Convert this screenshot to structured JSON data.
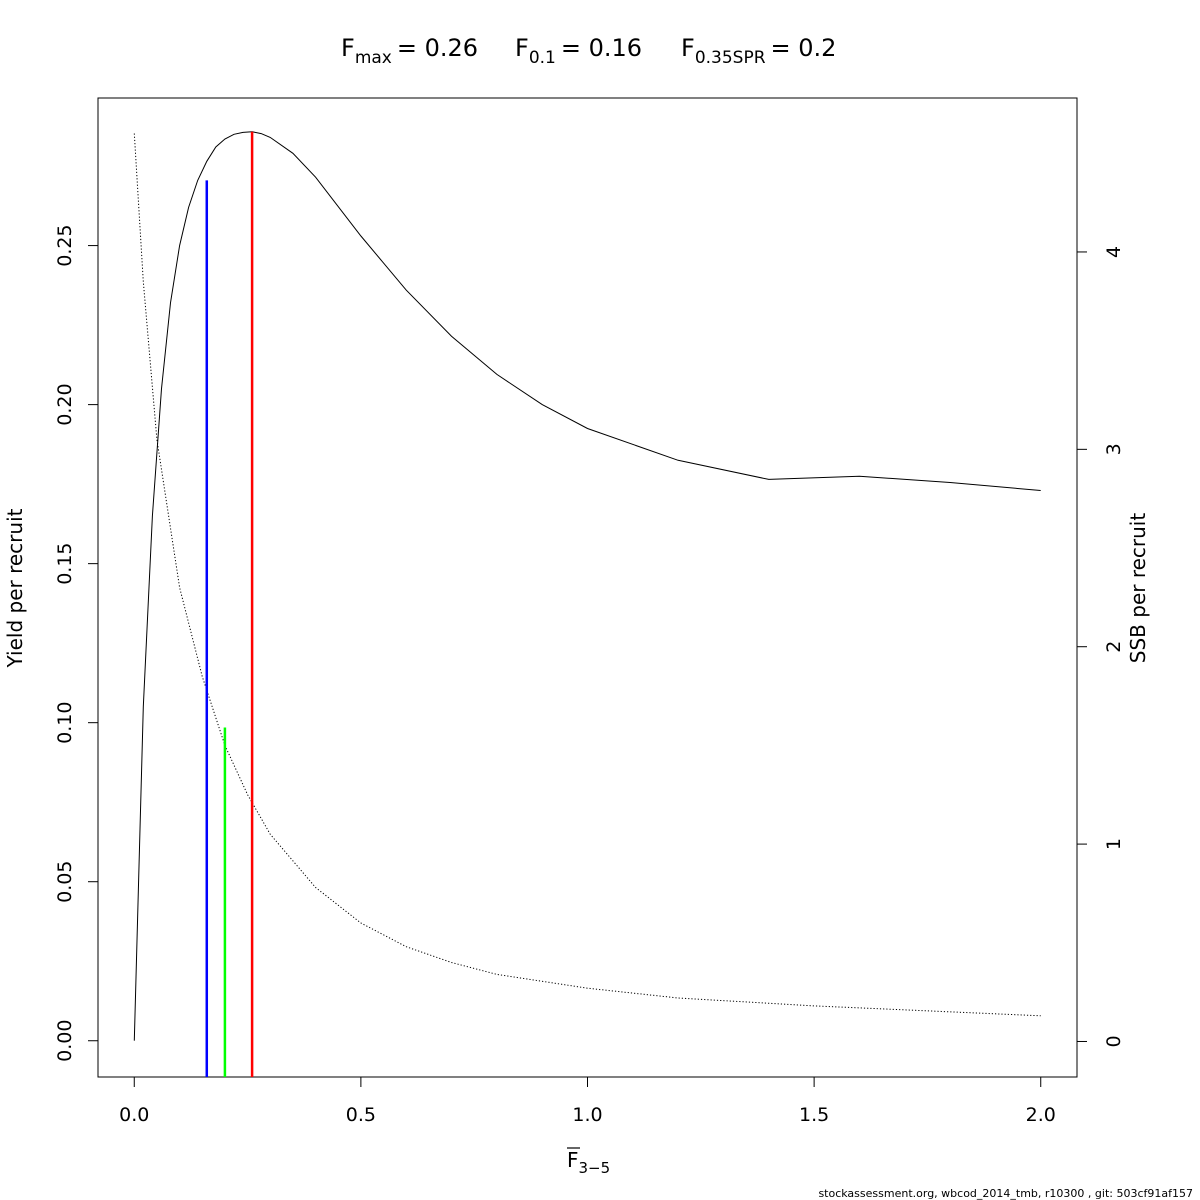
{
  "title": {
    "fmax": {
      "label": "F",
      "sub": "max",
      "value": "= 0.26"
    },
    "f01": {
      "label": "F",
      "sub": "0.1",
      "value": "= 0.16"
    },
    "f035": {
      "label": "F",
      "sub": "0.35SPR",
      "value": "= 0.2"
    }
  },
  "footer": "stockassessment.org, wbcod_2014_tmb, r10300 , git: 503cf91af157",
  "chart_data": {
    "type": "line",
    "xlabel": {
      "base": "F",
      "sub": "3−5"
    },
    "ylabel": "Yield per recruit",
    "y2label": "SSB per recruit",
    "xlim": [
      -0.08,
      2.08
    ],
    "ylim": [
      -0.0114,
      0.2964
    ],
    "y2lim": [
      -0.18,
      4.78
    ],
    "xticks": [
      "0.0",
      "0.5",
      "1.0",
      "1.5",
      "2.0"
    ],
    "yticks": [
      "0.00",
      "0.05",
      "0.10",
      "0.15",
      "0.20",
      "0.25"
    ],
    "y2ticks": [
      "0",
      "1",
      "2",
      "3",
      "4"
    ],
    "series": [
      {
        "axis": "left",
        "style": "solid",
        "color": "#000000",
        "x": [
          0,
          0.02,
          0.04,
          0.06,
          0.08,
          0.1,
          0.12,
          0.14,
          0.16,
          0.18,
          0.2,
          0.22,
          0.24,
          0.26,
          0.28,
          0.3,
          0.35,
          0.4,
          0.5,
          0.6,
          0.7,
          0.8,
          0.9,
          1.0,
          1.2,
          1.4,
          1.6,
          1.8,
          2.0
        ],
        "y": [
          0.0,
          0.105,
          0.165,
          0.205,
          0.232,
          0.25,
          0.262,
          0.2705,
          0.2765,
          0.281,
          0.2835,
          0.285,
          0.2856,
          0.2858,
          0.2852,
          0.284,
          0.279,
          0.2715,
          0.253,
          0.236,
          0.2215,
          0.2095,
          0.2,
          0.1925,
          0.1825,
          0.1765,
          0.1775,
          0.1755,
          0.173
        ]
      },
      {
        "axis": "right",
        "style": "dotted",
        "color": "#000000",
        "x": [
          0,
          0.02,
          0.05,
          0.1,
          0.15,
          0.2,
          0.25,
          0.3,
          0.4,
          0.5,
          0.6,
          0.7,
          0.8,
          1.0,
          1.2,
          1.5,
          2.0
        ],
        "y": [
          4.6,
          3.85,
          3.05,
          2.3,
          1.85,
          1.5,
          1.25,
          1.05,
          0.78,
          0.6,
          0.48,
          0.4,
          0.34,
          0.27,
          0.22,
          0.18,
          0.13
        ]
      }
    ],
    "vlines": [
      {
        "name": "F0.1",
        "x": 0.16,
        "ytop": 0.2705,
        "color": "#0000ff"
      },
      {
        "name": "F0.35SPR",
        "x": 0.2,
        "ytop": 0.0985,
        "color": "#00ff00"
      },
      {
        "name": "Fmax",
        "x": 0.26,
        "ytop": 0.2858,
        "color": "#ff0000"
      }
    ]
  }
}
